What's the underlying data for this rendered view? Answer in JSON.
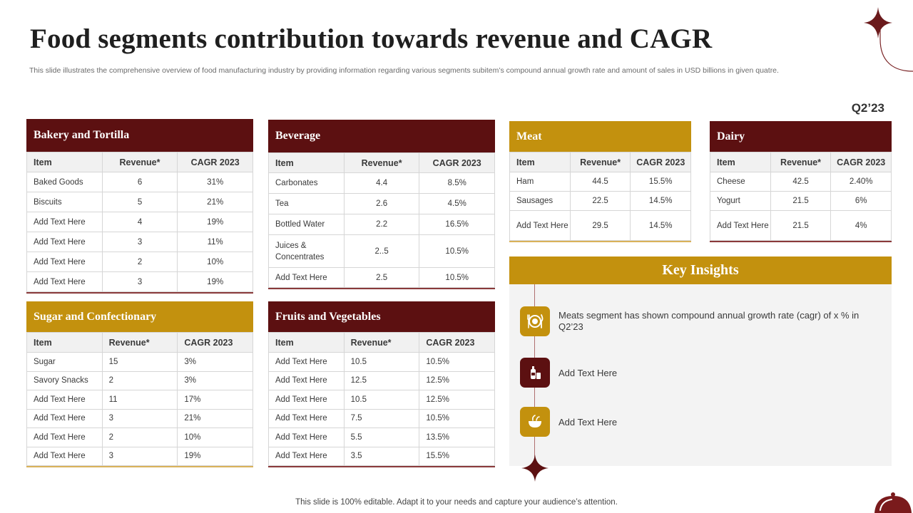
{
  "title": "Food segments contribution towards revenue and CAGR",
  "subtitle": "This slide illustrates the comprehensive overview of food manufacturing industry by providing information regarding various segments subitem’s compound annual growth rate and amount of sales in USD billions in given quatre.",
  "quarter": "Q2’23",
  "columns": [
    "Item",
    "Revenue*",
    "CAGR 2023"
  ],
  "bakery": {
    "title": "Bakery and Tortilla",
    "rows": [
      [
        "Baked Goods",
        "6",
        "31%"
      ],
      [
        "Biscuits",
        "5",
        "21%"
      ],
      [
        "Add Text Here",
        "4",
        "19%"
      ],
      [
        "Add Text Here",
        "3",
        "11%"
      ],
      [
        "Add Text Here",
        "2",
        "10%"
      ],
      [
        "Add Text Here",
        "3",
        "19%"
      ]
    ]
  },
  "beverage": {
    "title": "Beverage",
    "rows": [
      [
        "Carbonates",
        "4.4",
        "8.5%"
      ],
      [
        "Tea",
        "2.6",
        "4.5%"
      ],
      [
        "Bottled Water",
        "2.2",
        "16.5%"
      ],
      [
        "Juices & Concentrates",
        "2..5",
        "10.5%"
      ],
      [
        "Add Text Here",
        "2.5",
        "10.5%"
      ]
    ]
  },
  "meat": {
    "title": "Meat",
    "rows": [
      [
        "Ham",
        "44.5",
        "15.5%"
      ],
      [
        "Sausages",
        "22.5",
        "14.5%"
      ],
      [
        "Add Text Here",
        "29.5",
        "14.5%"
      ]
    ]
  },
  "dairy": {
    "title": "Dairy",
    "rows": [
      [
        "Cheese",
        "42.5",
        "2.40%"
      ],
      [
        "Yogurt",
        "21.5",
        "6%"
      ],
      [
        "Add Text Here",
        "21.5",
        "4%"
      ]
    ]
  },
  "sugar": {
    "title": "Sugar and Confectionary",
    "rows": [
      [
        "Sugar",
        "15",
        "3%"
      ],
      [
        "Savory Snacks",
        "2",
        "3%"
      ],
      [
        "Add Text Here",
        "11",
        "17%"
      ],
      [
        "Add Text Here",
        "3",
        "21%"
      ],
      [
        "Add Text Here",
        "2",
        "10%"
      ],
      [
        "Add Text Here",
        "3",
        "19%"
      ]
    ]
  },
  "fruits": {
    "title": "Fruits and Vegetables",
    "rows": [
      [
        "Add Text Here",
        "10.5",
        "10.5%"
      ],
      [
        "Add Text Here",
        "12.5",
        "12.5%"
      ],
      [
        "Add Text Here",
        "10.5",
        "12.5%"
      ],
      [
        "Add Text Here",
        "7.5",
        "10.5%"
      ],
      [
        "Add Text Here",
        "5.5",
        "13.5%"
      ],
      [
        "Add Text Here",
        "3.5",
        "15.5%"
      ]
    ]
  },
  "insights": {
    "title": "Key Insights",
    "items": [
      {
        "text": "Meats segment has shown compound annual growth rate (cagr) of x % in Q2’23",
        "icon": "food-plate-icon",
        "color": "#c3910e"
      },
      {
        "text": "Add Text Here",
        "icon": "bottle-icon",
        "color": "#5c1011"
      },
      {
        "text": "Add Text Here",
        "icon": "bowl-icon",
        "color": "#c3910e"
      }
    ]
  },
  "footer": "This slide is 100% editable. Adapt it to your needs and capture your audience’s attention.",
  "colors": {
    "maroon": "#5c1011",
    "gold": "#c3910e"
  }
}
